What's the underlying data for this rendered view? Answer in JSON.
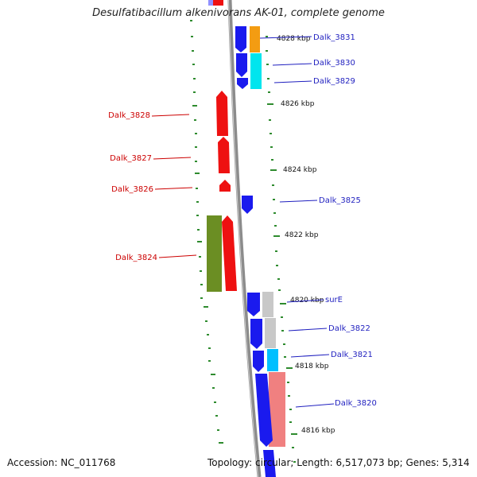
{
  "title": "Desulfatibacillum alkenivorans AK-01, complete genome",
  "footer": {
    "accession": "Accession: NC_011768",
    "summary": "Topology: circular; Length: 6,517,073 bp; Genes: 5,314"
  },
  "colors": {
    "background": "#ffffff",
    "backbone": "#8c8c8c",
    "tick": "#2e8b2e",
    "left_label": "#cc0000",
    "right_label": "#1f1fbf"
  },
  "ruler_ticks": [
    "4828 kbp",
    "4826 kbp",
    "4824 kbp",
    "4822 kbp",
    "4820 kbp",
    "4818 kbp",
    "4816 kbp"
  ],
  "genes_right": [
    {
      "label": "Dalk_3831",
      "color": "#1a1aee",
      "strand": "reverse"
    },
    {
      "label": "Dalk_3830",
      "color": "#1a1aee",
      "strand": "reverse"
    },
    {
      "label": "Dalk_3829",
      "color": "#1a1aee",
      "strand": "reverse"
    },
    {
      "label": "Dalk_3825",
      "color": "#1a1aee",
      "strand": "reverse"
    },
    {
      "label": "surE",
      "color": "#1a1aee",
      "strand": "reverse"
    },
    {
      "label": "Dalk_3822",
      "color": "#1a1aee",
      "strand": "reverse"
    },
    {
      "label": "Dalk_3821",
      "color": "#1a1aee",
      "strand": "reverse"
    },
    {
      "label": "Dalk_3820",
      "color": "#1a1aee",
      "strand": "reverse"
    }
  ],
  "genes_left": [
    {
      "label": "Dalk_3828",
      "color": "#ee1111",
      "strand": "forward"
    },
    {
      "label": "Dalk_3827",
      "color": "#ee1111",
      "strand": "forward"
    },
    {
      "label": "Dalk_3826",
      "color": "#ee1111",
      "strand": "forward"
    },
    {
      "label": "Dalk_3824",
      "color": "#ee1111",
      "strand": "forward"
    }
  ],
  "cog_colors": [
    "#f39c12",
    "#00e5ee",
    "#6b8e23",
    "#c8c8c8",
    "#00bfff",
    "#f08080",
    "#9090ff"
  ]
}
